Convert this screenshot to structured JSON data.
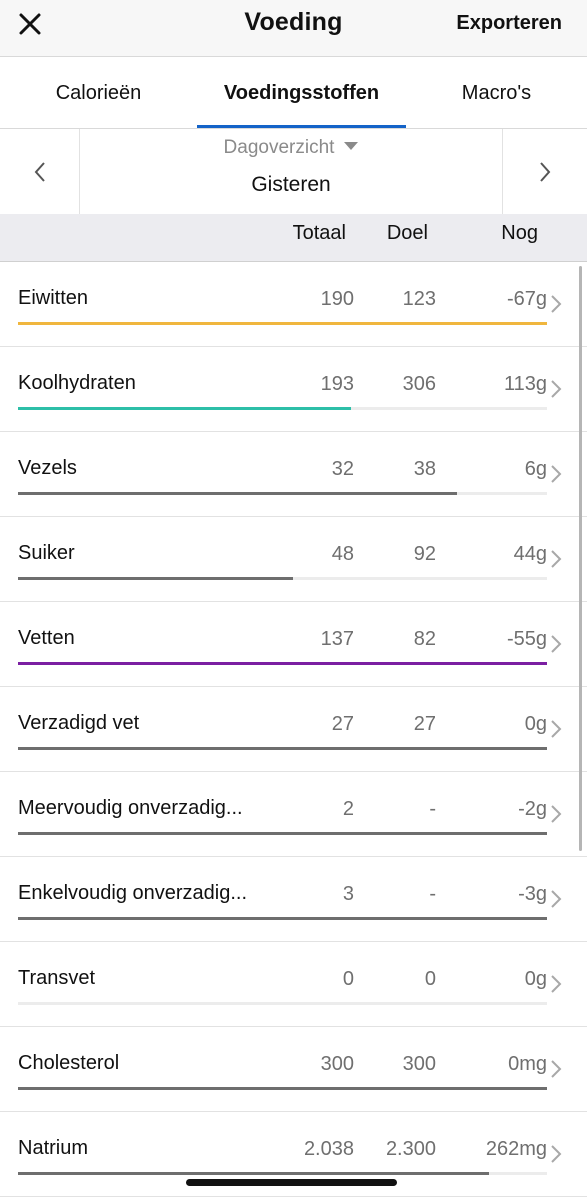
{
  "header": {
    "title": "Voeding",
    "export_label": "Exporteren",
    "close_icon": "close-icon"
  },
  "tabs": [
    {
      "label": "Calorieën",
      "active": false
    },
    {
      "label": "Voedingsstoffen",
      "active": true
    },
    {
      "label": "Macro's",
      "active": false
    }
  ],
  "day_selector": {
    "mode": "Dagoverzicht",
    "value": "Gisteren",
    "prev_icon": "chevron-left-icon",
    "next_icon": "chevron-right-icon"
  },
  "columns": {
    "total": "Totaal",
    "goal": "Doel",
    "remaining": "Nog"
  },
  "accent_color": "#1463c8",
  "nutrients": [
    {
      "name": "Eiwitten",
      "total": "190",
      "goal": "123",
      "remaining": "-67g",
      "progress": 1.0,
      "color": "#f0b63e"
    },
    {
      "name": "Koolhydraten",
      "total": "193",
      "goal": "306",
      "remaining": "113g",
      "progress": 0.63,
      "color": "#2dbfa8"
    },
    {
      "name": "Vezels",
      "total": "32",
      "goal": "38",
      "remaining": "6g",
      "progress": 0.83,
      "color": "#6e6e6e"
    },
    {
      "name": "Suiker",
      "total": "48",
      "goal": "92",
      "remaining": "44g",
      "progress": 0.52,
      "color": "#6e6e6e"
    },
    {
      "name": "Vetten",
      "total": "137",
      "goal": "82",
      "remaining": "-55g",
      "progress": 1.0,
      "color": "#7b1fa2"
    },
    {
      "name": "Verzadigd vet",
      "total": "27",
      "goal": "27",
      "remaining": "0g",
      "progress": 1.0,
      "color": "#6e6e6e"
    },
    {
      "name": "Meervoudig onverzadig...",
      "total": "2",
      "goal": "-",
      "remaining": "-2g",
      "progress": 1.0,
      "color": "#6e6e6e"
    },
    {
      "name": "Enkelvoudig onverzadig...",
      "total": "3",
      "goal": "-",
      "remaining": "-3g",
      "progress": 1.0,
      "color": "#6e6e6e"
    },
    {
      "name": "Transvet",
      "total": "0",
      "goal": "0",
      "remaining": "0g",
      "progress": 0.0,
      "color": "#6e6e6e"
    },
    {
      "name": "Cholesterol",
      "total": "300",
      "goal": "300",
      "remaining": "0mg",
      "progress": 1.0,
      "color": "#6e6e6e"
    },
    {
      "name": "Natrium",
      "total": "2.038",
      "goal": "2.300",
      "remaining": "262mg",
      "progress": 0.89,
      "color": "#6e6e6e"
    }
  ]
}
